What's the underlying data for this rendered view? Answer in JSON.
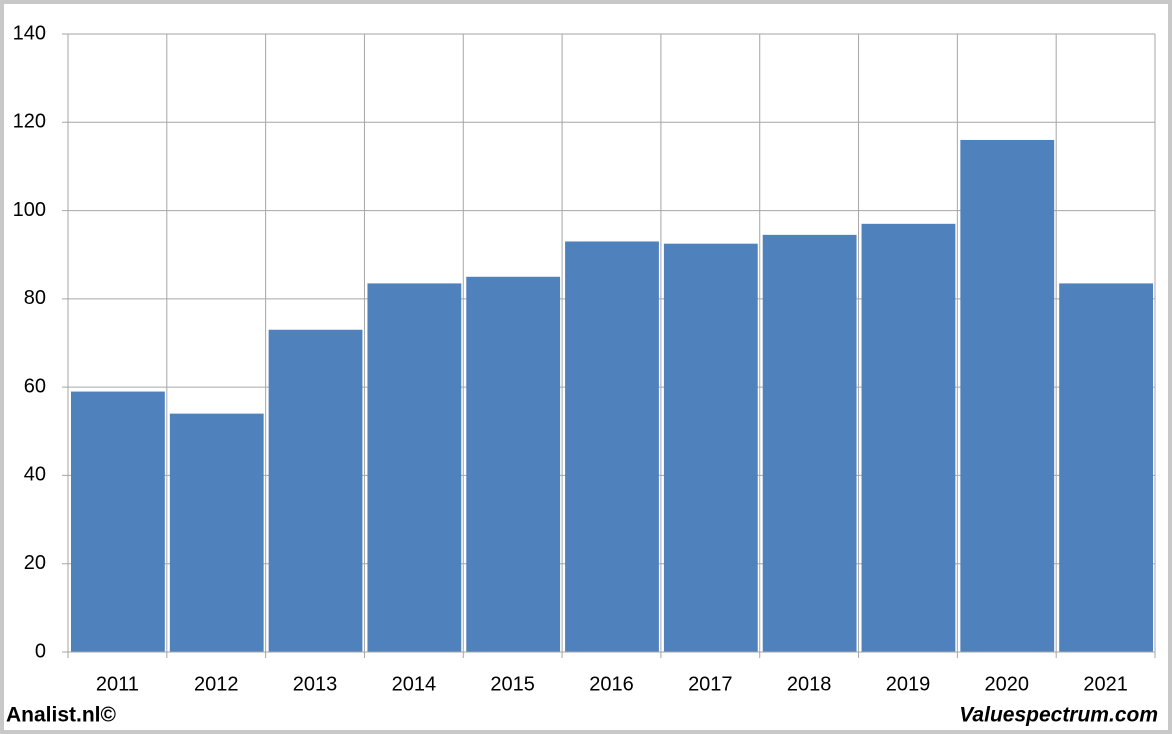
{
  "chart_data": {
    "type": "bar",
    "categories": [
      "2011",
      "2012",
      "2013",
      "2014",
      "2015",
      "2016",
      "2017",
      "2018",
      "2019",
      "2020",
      "2021"
    ],
    "values": [
      59,
      54,
      73,
      83.5,
      85,
      93,
      92.5,
      94.5,
      97,
      116,
      83.5
    ],
    "color": "#4f81bd",
    "ylim": [
      0,
      140
    ],
    "yticks": [
      0,
      20,
      40,
      60,
      80,
      100,
      120,
      140
    ],
    "grid": true,
    "annotations": [
      "Analist.nl©",
      "Valuespectrum.com"
    ]
  }
}
